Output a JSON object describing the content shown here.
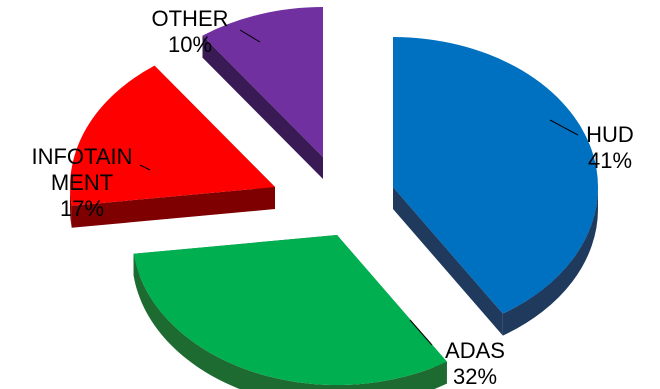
{
  "chart_data": {
    "type": "pie",
    "title": "",
    "slices": [
      {
        "label": "HUD",
        "value": 41,
        "value_label": "41%",
        "color": "#0070C0",
        "side_color": "#1F3A5C"
      },
      {
        "label": "ADAS",
        "value": 32,
        "value_label": "32%",
        "color": "#00B050",
        "side_color": "#1E6B32"
      },
      {
        "label": "INFOTAINMENT",
        "label_lines": [
          "INFOTAIN",
          "MENT"
        ],
        "value": 17,
        "value_label": "17%",
        "color": "#FF0000",
        "side_color": "#7F0000"
      },
      {
        "label": "OTHER",
        "value": 10,
        "value_label": "10%",
        "color": "#7030A0",
        "side_color": "#3A1A55"
      }
    ],
    "style": "3d-exploded",
    "legend": "none"
  }
}
